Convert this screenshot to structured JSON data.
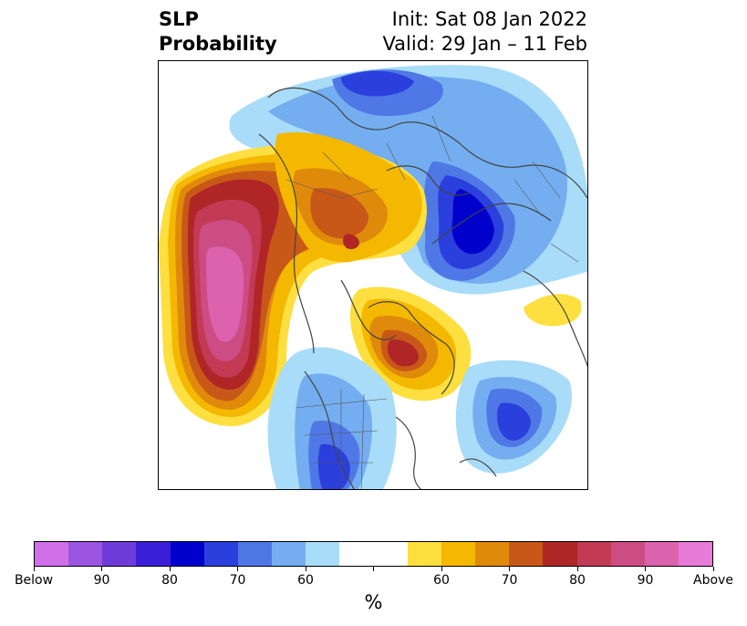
{
  "header": {
    "variable": "SLP",
    "product": "Probability",
    "init": "Init: Sat 08 Jan 2022",
    "valid": "Valid: 29 Jan – 11 Feb"
  },
  "colorbar": {
    "label": "%",
    "colors": [
      "#d070e8",
      "#9b55e0",
      "#6e3bd8",
      "#3b1fd6",
      "#0000cd",
      "#2a3fdc",
      "#4f78e6",
      "#74aef0",
      "#a9dcf8",
      "#ffffff",
      "#ffffff",
      "#fddf40",
      "#f4b800",
      "#e08a0c",
      "#c85818",
      "#b02626",
      "#c23a54",
      "#cc4c84",
      "#dc62ae",
      "#e87ad8"
    ],
    "tick_labels": [
      "Below",
      "90",
      "80",
      "70",
      "60",
      "",
      "60",
      "70",
      "80",
      "90",
      "Above"
    ]
  },
  "map": {
    "projection": "north-polar-stereographic",
    "field": "SLP probability"
  }
}
